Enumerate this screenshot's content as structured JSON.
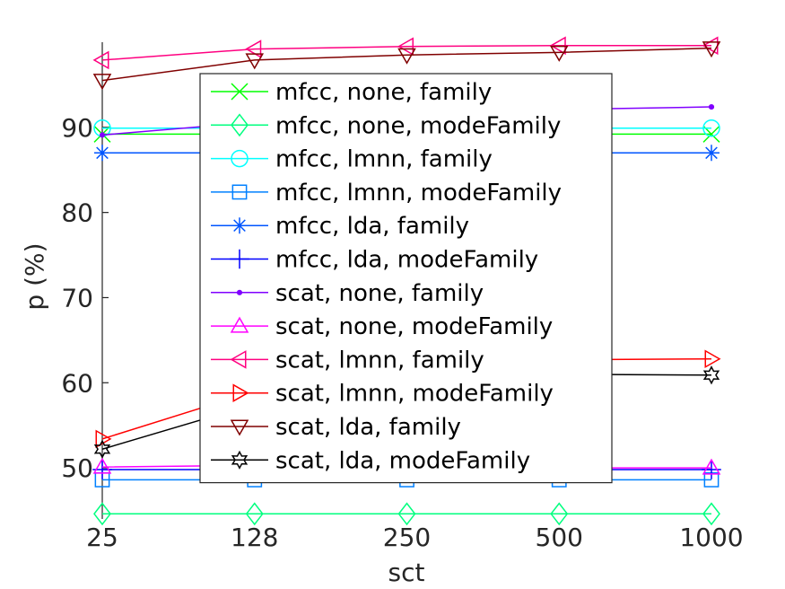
{
  "chart_data": {
    "type": "line",
    "title": "",
    "xlabel": "sct",
    "ylabel": "p (%)",
    "categories": [
      "25",
      "128",
      "250",
      "500",
      "1000"
    ],
    "ylim": [
      44,
      100
    ],
    "yticks": [
      50,
      60,
      70,
      80,
      90
    ],
    "legend_position": "center-left",
    "grid": false,
    "series": [
      {
        "name": "mfcc, none, family",
        "color": "#00ff00",
        "marker": "x",
        "values": [
          89.2,
          89.2,
          89.2,
          89.2,
          89.2
        ]
      },
      {
        "name": "mfcc, none, modeFamily",
        "color": "#00ff7f",
        "marker": "diamond",
        "values": [
          44.6,
          44.6,
          44.6,
          44.6,
          44.6
        ]
      },
      {
        "name": "mfcc, lmnn, family",
        "color": "#00ffff",
        "marker": "circle",
        "values": [
          89.9,
          89.9,
          89.9,
          89.9,
          89.9
        ]
      },
      {
        "name": "mfcc, lmnn, modeFamily",
        "color": "#0080ff",
        "marker": "square",
        "values": [
          48.6,
          48.6,
          48.6,
          48.6,
          48.6
        ]
      },
      {
        "name": "mfcc, lda, family",
        "color": "#0055ff",
        "marker": "asterisk",
        "values": [
          87.0,
          87.0,
          87.0,
          87.0,
          87.0
        ]
      },
      {
        "name": "mfcc, lda, modeFamily",
        "color": "#0000ff",
        "marker": "plus",
        "values": [
          49.8,
          49.8,
          49.8,
          49.8,
          49.8
        ]
      },
      {
        "name": "scat, none, family",
        "color": "#8000ff",
        "marker": "dot",
        "values": [
          89.1,
          90.6,
          91.6,
          92.1,
          92.4
        ]
      },
      {
        "name": "scat, none, modeFamily",
        "color": "#ff00ff",
        "marker": "triangle-up",
        "values": [
          50.1,
          50.3,
          50.2,
          50.0,
          50.0
        ]
      },
      {
        "name": "scat, lmnn, family",
        "color": "#ff0080",
        "marker": "triangle-left",
        "values": [
          97.9,
          99.2,
          99.5,
          99.6,
          99.6
        ]
      },
      {
        "name": "scat, lmnn, modeFamily",
        "color": "#ff0000",
        "marker": "triangle-right",
        "values": [
          53.4,
          59.0,
          61.5,
          62.7,
          62.8
        ]
      },
      {
        "name": "scat, lda, family",
        "color": "#800000",
        "marker": "triangle-down",
        "values": [
          95.5,
          97.9,
          98.5,
          98.8,
          99.3
        ]
      },
      {
        "name": "scat, lda, modeFamily",
        "color": "#000000",
        "marker": "hexagram",
        "values": [
          52.2,
          57.5,
          60.0,
          61.0,
          60.9
        ]
      }
    ]
  }
}
